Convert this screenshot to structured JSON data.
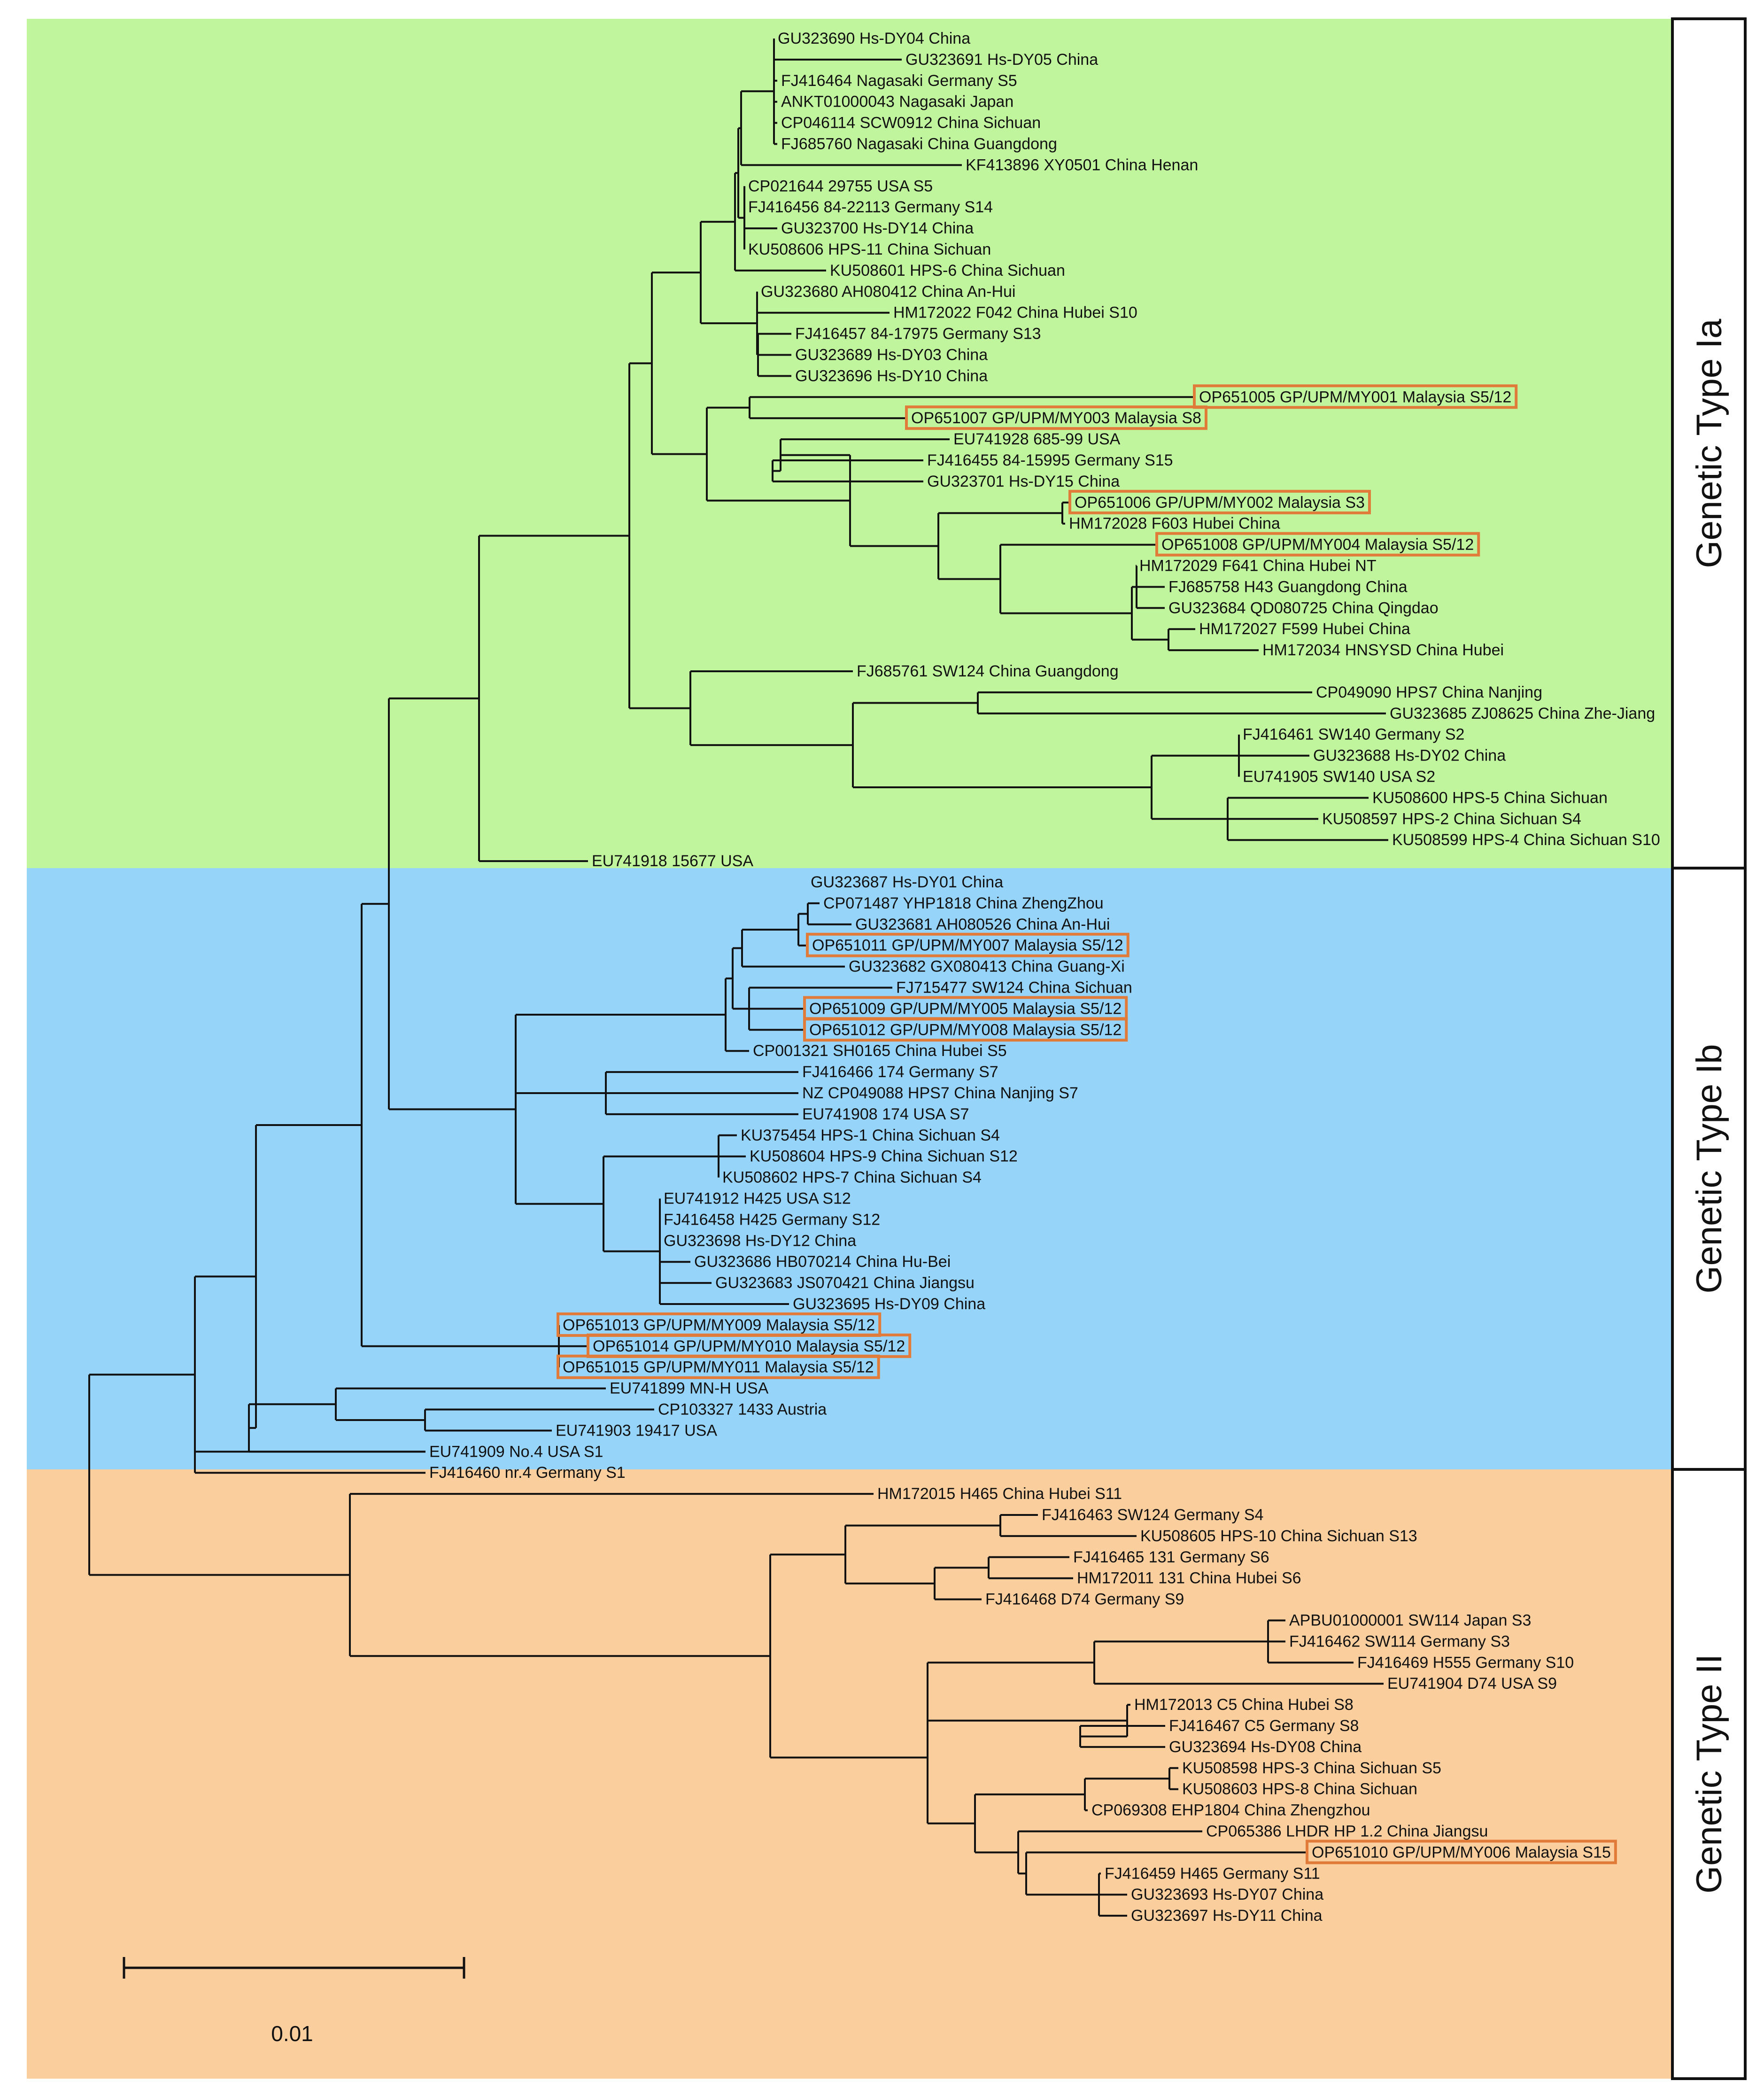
{
  "colors": {
    "type_ia": "#c0f59d",
    "type_ib": "#97d4fa",
    "type_ii": "#fbce9e",
    "highlight": "#e07b39",
    "line": "#111111"
  },
  "clades": [
    {
      "id": "ia",
      "label": "Genetic Type Ia"
    },
    {
      "id": "ib",
      "label": "Genetic Type Ib"
    },
    {
      "id": "ii",
      "label": "Genetic Type II"
    }
  ],
  "scale_bar": {
    "value_label": "0.01"
  },
  "leaves": [
    {
      "label": "GU323690 Hs-DY04 China"
    },
    {
      "label": "GU323691 Hs-DY05 China"
    },
    {
      "label": "FJ416464 Nagasaki Germany S5"
    },
    {
      "label": "ANKT01000043 Nagasaki Japan"
    },
    {
      "label": "CP046114 SCW0912 China Sichuan"
    },
    {
      "label": "FJ685760 Nagasaki China Guangdong"
    },
    {
      "label": "KF413896 XY0501 China Henan"
    },
    {
      "label": "CP021644 29755 USA S5"
    },
    {
      "label": "FJ416456 84-22113 Germany S14"
    },
    {
      "label": "GU323700 Hs-DY14 China"
    },
    {
      "label": "KU508606 HPS-11 China Sichuan"
    },
    {
      "label": "KU508601 HPS-6 China Sichuan"
    },
    {
      "label": "GU323680 AH080412 China An-Hui"
    },
    {
      "label": "HM172022 F042 China Hubei S10"
    },
    {
      "label": "FJ416457 84-17975 Germany S13"
    },
    {
      "label": "GU323689 Hs-DY03 China"
    },
    {
      "label": "GU323696 Hs-DY10 China"
    },
    {
      "label": "OP651005 GP/UPM/MY001 Malaysia S5/12",
      "highlight": true
    },
    {
      "label": "OP651007 GP/UPM/MY003 Malaysia S8",
      "highlight": true
    },
    {
      "label": "EU741928 685-99 USA"
    },
    {
      "label": "FJ416455 84-15995 Germany S15"
    },
    {
      "label": "GU323701 Hs-DY15 China"
    },
    {
      "label": "OP651006 GP/UPM/MY002 Malaysia S3",
      "highlight": true
    },
    {
      "label": "HM172028 F603 Hubei China"
    },
    {
      "label": "OP651008 GP/UPM/MY004 Malaysia S5/12",
      "highlight": true
    },
    {
      "label": "HM172029 F641 China Hubei NT"
    },
    {
      "label": "FJ685758 H43 Guangdong China"
    },
    {
      "label": "GU323684 QD080725 China Qingdao"
    },
    {
      "label": "HM172027 F599 Hubei China"
    },
    {
      "label": "HM172034 HNSYSD China Hubei"
    },
    {
      "label": "FJ685761 SW124 China Guangdong"
    },
    {
      "label": "CP049090 HPS7 China Nanjing"
    },
    {
      "label": "GU323685 ZJ08625 China Zhe-Jiang"
    },
    {
      "label": "FJ416461 SW140 Germany S2"
    },
    {
      "label": "GU323688 Hs-DY02 China"
    },
    {
      "label": "EU741905 SW140 USA S2"
    },
    {
      "label": "KU508600 HPS-5 China Sichuan"
    },
    {
      "label": "KU508597 HPS-2 China Sichuan S4"
    },
    {
      "label": "KU508599 HPS-4 China Sichuan S10"
    },
    {
      "label": "EU741918 15677 USA"
    },
    {
      "label": "GU323687 Hs-DY01 China"
    },
    {
      "label": "CP071487 YHP1818 China ZhengZhou"
    },
    {
      "label": "GU323681 AH080526 China An-Hui"
    },
    {
      "label": "OP651011 GP/UPM/MY007 Malaysia S5/12",
      "highlight": true
    },
    {
      "label": "GU323682 GX080413 China Guang-Xi"
    },
    {
      "label": "FJ715477 SW124 China Sichuan"
    },
    {
      "label": "OP651009 GP/UPM/MY005 Malaysia S5/12",
      "highlight": true
    },
    {
      "label": "OP651012 GP/UPM/MY008 Malaysia S5/12",
      "highlight": true
    },
    {
      "label": "CP001321 SH0165 China Hubei S5"
    },
    {
      "label": "FJ416466 174 Germany S7"
    },
    {
      "label": "NZ CP049088 HPS7 China Nanjing S7"
    },
    {
      "label": "EU741908 174 USA S7"
    },
    {
      "label": "KU375454 HPS-1 China Sichuan S4"
    },
    {
      "label": "KU508604 HPS-9 China Sichuan S12"
    },
    {
      "label": "KU508602 HPS-7 China Sichuan S4"
    },
    {
      "label": "EU741912 H425 USA S12"
    },
    {
      "label": "FJ416458 H425 Germany S12"
    },
    {
      "label": "GU323698 Hs-DY12 China"
    },
    {
      "label": "GU323686 HB070214 China Hu-Bei"
    },
    {
      "label": "GU323683 JS070421 China Jiangsu"
    },
    {
      "label": "GU323695 Hs-DY09 China"
    },
    {
      "label": "OP651013 GP/UPM/MY009 Malaysia S5/12",
      "highlight": true
    },
    {
      "label": "OP651014 GP/UPM/MY010 Malaysia S5/12",
      "highlight": true
    },
    {
      "label": "OP651015 GP/UPM/MY011 Malaysia S5/12",
      "highlight": true
    },
    {
      "label": "EU741899 MN-H USA"
    },
    {
      "label": "CP103327 1433 Austria"
    },
    {
      "label": "EU741903 19417 USA"
    },
    {
      "label": "EU741909 No.4 USA S1"
    },
    {
      "label": "FJ416460 nr.4 Germany S1"
    },
    {
      "label": "HM172015 H465 China Hubei S11"
    },
    {
      "label": "FJ416463 SW124 Germany S4"
    },
    {
      "label": "KU508605 HPS-10 China Sichuan S13"
    },
    {
      "label": "FJ416465 131 Germany S6"
    },
    {
      "label": "HM172011 131 China Hubei S6"
    },
    {
      "label": "FJ416468 D74 Germany S9"
    },
    {
      "label": "APBU01000001 SW114 Japan S3"
    },
    {
      "label": "FJ416462 SW114 Germany S3"
    },
    {
      "label": "FJ416469 H555 Germany S10"
    },
    {
      "label": "EU741904 D74 USA S9"
    },
    {
      "label": "HM172013 C5 China Hubei S8"
    },
    {
      "label": "FJ416467 C5 Germany S8"
    },
    {
      "label": "GU323694 Hs-DY08 China"
    },
    {
      "label": "KU508598 HPS-3 China Sichuan S5"
    },
    {
      "label": "KU508603 HPS-8 China Sichuan"
    },
    {
      "label": "CP069308 EHP1804 China Zhengzhou"
    },
    {
      "label": "CP065386 LHDR HP 1.2 China Jiangsu"
    },
    {
      "label": "OP651010 GP/UPM/MY006 Malaysia S15",
      "highlight": true
    },
    {
      "label": "FJ416459 H465 Germany S11"
    },
    {
      "label": "GU323693 Hs-DY07 China"
    },
    {
      "label": "GU323697 Hs-DY11 China"
    }
  ]
}
